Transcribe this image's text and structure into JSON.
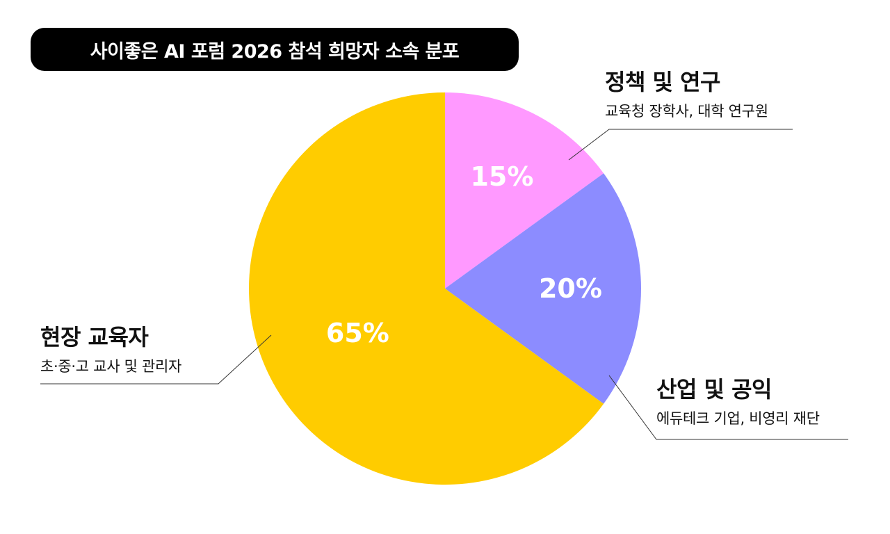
{
  "title": "사이좋은 AI 포럼 2026 참석 희망자 소속 분포",
  "chart_data": {
    "type": "pie",
    "title": "사이좋은 AI 포럼 2026 참석 희망자 소속 분포",
    "slices": [
      {
        "name": "정책 및 연구",
        "description": "교육청 장학사, 대학 연구원",
        "value": 15,
        "label": "15%",
        "color": "#FF99FF"
      },
      {
        "name": "산업 및 공익",
        "description": "에듀테크 기업, 비영리 재단",
        "value": 20,
        "label": "20%",
        "color": "#8C8CFF"
      },
      {
        "name": "현장 교육자",
        "description": "초·중·고 교사 및 관리자",
        "value": 65,
        "label": "65%",
        "color": "#FFCC00"
      }
    ]
  }
}
